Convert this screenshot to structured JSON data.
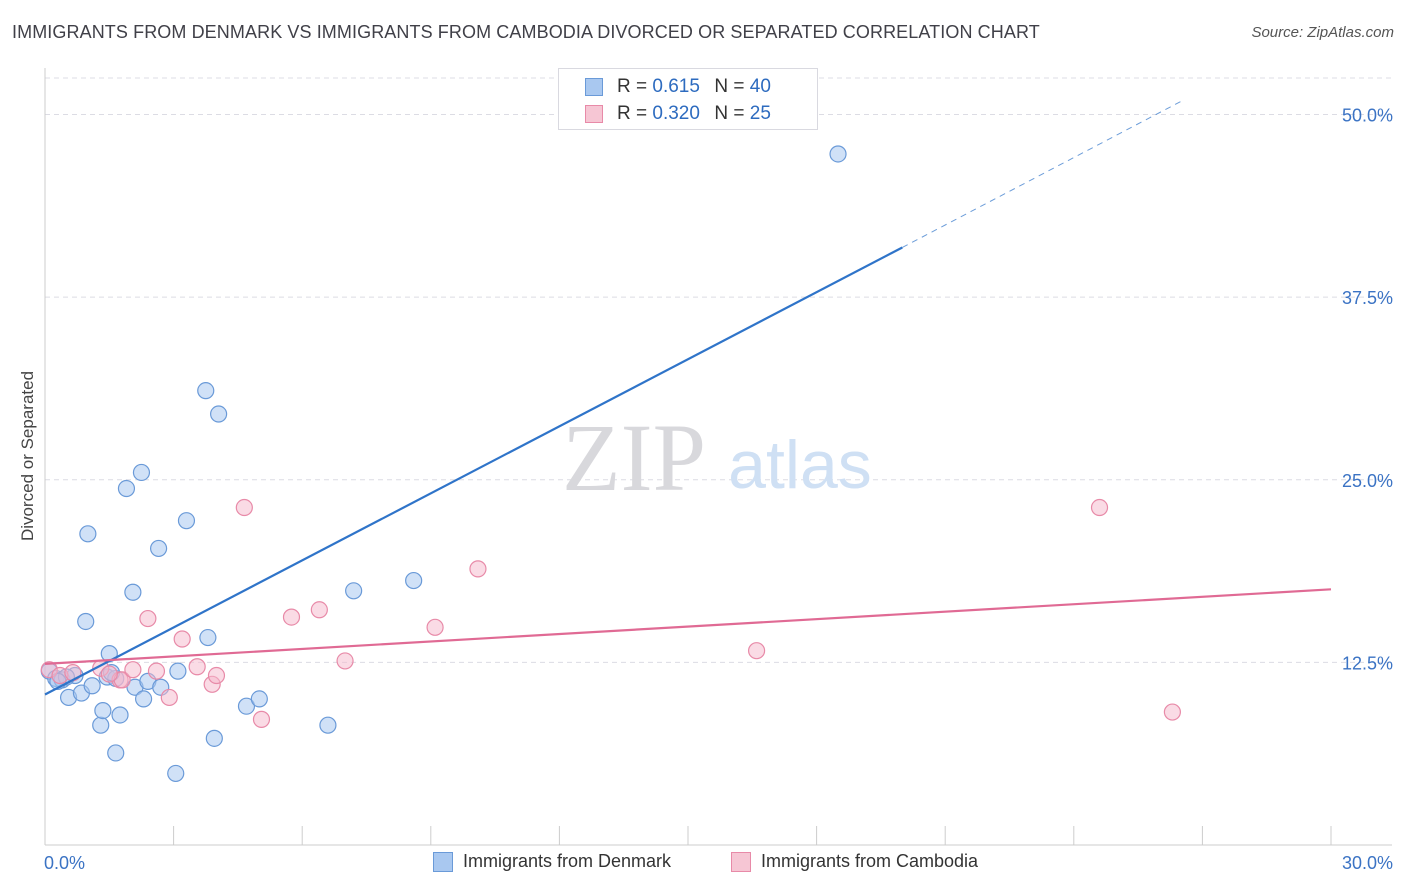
{
  "title": "IMMIGRANTS FROM DENMARK VS IMMIGRANTS FROM CAMBODIA DIVORCED OR SEPARATED CORRELATION CHART",
  "source": "Source: ZipAtlas.com",
  "watermark": {
    "zip": "ZIP",
    "atlas": "atlas"
  },
  "legend": {
    "r_label": "R =",
    "n_label": "N =",
    "rows": [
      {
        "r": "0.615",
        "n": "40"
      },
      {
        "r": "0.320",
        "n": "25"
      }
    ]
  },
  "colors": {
    "denmark_fill": "#a9c8f0",
    "denmark_stroke": "#6a9ad8",
    "denmark_line": "#2f74c9",
    "cambodia_fill": "#f6b8cb",
    "cambodia_stroke": "#e88aa8",
    "cambodia_line": "#e06a94",
    "tick_label": "#3b73c4"
  },
  "chart_data": {
    "type": "scatter",
    "xlabel": "",
    "ylabel": "Divorced or Separated",
    "xlim": [
      0,
      30
    ],
    "ylim": [
      0,
      52.5
    ],
    "x_tick_labels": [
      {
        "value": 0,
        "label": "0.0%"
      },
      {
        "value": 30,
        "label": "30.0%"
      }
    ],
    "y_tick_labels": [
      {
        "value": 12.5,
        "label": "12.5%"
      },
      {
        "value": 25,
        "label": "25.0%"
      },
      {
        "value": 37.5,
        "label": "37.5%"
      },
      {
        "value": 50,
        "label": "50.0%"
      }
    ],
    "grid": "horizontal dashed",
    "legend_position": "top-center",
    "series": [
      {
        "name": "Immigrants from Denmark",
        "points": [
          [
            0.1,
            11.9
          ],
          [
            0.25,
            11.4
          ],
          [
            0.4,
            11.3
          ],
          [
            0.55,
            10.1
          ],
          [
            0.7,
            11.6
          ],
          [
            0.85,
            10.4
          ],
          [
            0.95,
            15.3
          ],
          [
            1.0,
            21.3
          ],
          [
            1.1,
            10.9
          ],
          [
            1.3,
            8.2
          ],
          [
            1.35,
            9.2
          ],
          [
            1.45,
            11.5
          ],
          [
            1.5,
            13.1
          ],
          [
            1.65,
            11.4
          ],
          [
            1.65,
            6.3
          ],
          [
            1.75,
            8.9
          ],
          [
            1.9,
            24.4
          ],
          [
            2.05,
            17.3
          ],
          [
            2.1,
            10.8
          ],
          [
            2.25,
            25.5
          ],
          [
            2.3,
            10.0
          ],
          [
            2.4,
            11.2
          ],
          [
            2.65,
            20.3
          ],
          [
            2.7,
            10.8
          ],
          [
            3.05,
            4.9
          ],
          [
            3.1,
            11.9
          ],
          [
            3.3,
            22.2
          ],
          [
            3.75,
            31.1
          ],
          [
            3.8,
            14.2
          ],
          [
            3.95,
            7.3
          ],
          [
            4.05,
            29.5
          ],
          [
            4.7,
            9.5
          ],
          [
            5.0,
            10.0
          ],
          [
            6.6,
            8.2
          ],
          [
            7.2,
            17.4
          ],
          [
            8.6,
            18.1
          ],
          [
            18.5,
            47.3
          ],
          [
            0.5,
            11.5
          ],
          [
            1.55,
            11.8
          ],
          [
            0.3,
            11.2
          ]
        ]
      },
      {
        "name": "Immigrants from Cambodia",
        "points": [
          [
            0.1,
            12.0
          ],
          [
            0.35,
            11.6
          ],
          [
            0.65,
            11.8
          ],
          [
            1.3,
            12.1
          ],
          [
            1.75,
            11.3
          ],
          [
            1.8,
            11.3
          ],
          [
            2.05,
            12.0
          ],
          [
            2.4,
            15.5
          ],
          [
            2.6,
            11.9
          ],
          [
            2.9,
            10.1
          ],
          [
            3.2,
            14.1
          ],
          [
            3.55,
            12.2
          ],
          [
            3.9,
            11.0
          ],
          [
            4.0,
            11.6
          ],
          [
            4.65,
            23.1
          ],
          [
            5.05,
            8.6
          ],
          [
            5.75,
            15.6
          ],
          [
            6.4,
            16.1
          ],
          [
            7.0,
            12.6
          ],
          [
            9.1,
            14.9
          ],
          [
            10.1,
            18.9
          ],
          [
            16.6,
            13.3
          ],
          [
            24.6,
            23.1
          ],
          [
            26.3,
            9.1
          ],
          [
            1.5,
            11.7
          ]
        ]
      }
    ],
    "trend_lines": [
      {
        "series": "Immigrants from Denmark",
        "solid": [
          [
            0,
            10.3
          ],
          [
            20,
            40.9
          ]
        ],
        "dashed": [
          [
            20,
            40.9
          ],
          [
            26.5,
            50.9
          ]
        ]
      },
      {
        "series": "Immigrants from Cambodia",
        "solid": [
          [
            0,
            12.4
          ],
          [
            30,
            17.5
          ]
        ]
      }
    ]
  }
}
